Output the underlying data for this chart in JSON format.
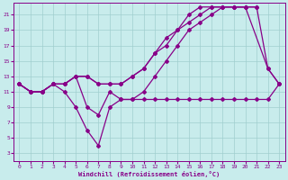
{
  "xlabel": "Windchill (Refroidissement éolien,°C)",
  "xlim": [
    -0.5,
    23.5
  ],
  "ylim": [
    2,
    22.5
  ],
  "xticks": [
    0,
    1,
    2,
    3,
    4,
    5,
    6,
    7,
    8,
    9,
    10,
    11,
    12,
    13,
    14,
    15,
    16,
    17,
    18,
    19,
    20,
    21,
    22,
    23
  ],
  "yticks": [
    3,
    5,
    7,
    9,
    11,
    13,
    15,
    17,
    19,
    21
  ],
  "bg_color": "#c8ecec",
  "grid_color": "#a0cece",
  "line_color": "#880088",
  "line1_x": [
    0,
    1,
    2,
    3,
    4,
    5,
    6,
    7,
    8,
    9,
    10,
    11,
    12,
    13,
    14,
    15,
    16,
    17,
    18,
    19,
    20,
    22,
    23
  ],
  "line1_y": [
    12,
    11,
    11,
    12,
    12,
    13,
    9,
    8,
    11,
    10,
    10,
    11,
    13,
    15,
    17,
    19,
    20,
    21,
    22,
    22,
    22,
    14,
    12
  ],
  "line2_x": [
    0,
    1,
    2,
    3,
    4,
    5,
    6,
    7,
    8,
    9,
    10,
    11,
    12,
    13,
    14,
    15,
    16,
    17,
    18,
    19,
    20,
    21,
    22,
    23
  ],
  "line2_y": [
    12,
    11,
    11,
    12,
    11,
    9,
    6,
    4,
    9,
    10,
    10,
    10,
    10,
    10,
    10,
    10,
    10,
    10,
    10,
    10,
    10,
    10,
    10,
    12
  ],
  "line3_x": [
    0,
    1,
    2,
    3,
    4,
    5,
    6,
    7,
    8,
    9,
    10,
    11,
    12,
    13,
    14,
    15,
    16,
    17,
    18,
    19,
    20,
    21,
    22,
    23
  ],
  "line3_y": [
    12,
    11,
    11,
    12,
    12,
    13,
    13,
    12,
    12,
    12,
    13,
    14,
    16,
    17,
    19,
    20,
    21,
    22,
    22,
    22,
    22,
    22,
    14,
    12
  ],
  "line4_x": [
    0,
    1,
    2,
    3,
    4,
    5,
    6,
    7,
    8,
    9,
    10,
    11,
    12,
    13,
    14,
    15,
    16,
    17,
    18,
    19,
    20,
    21
  ],
  "line4_y": [
    12,
    11,
    11,
    12,
    12,
    13,
    13,
    12,
    12,
    12,
    13,
    14,
    16,
    18,
    19,
    21,
    22,
    22,
    22,
    22,
    22,
    22
  ],
  "marker": "D",
  "markersize": 2.0,
  "linewidth": 0.9
}
